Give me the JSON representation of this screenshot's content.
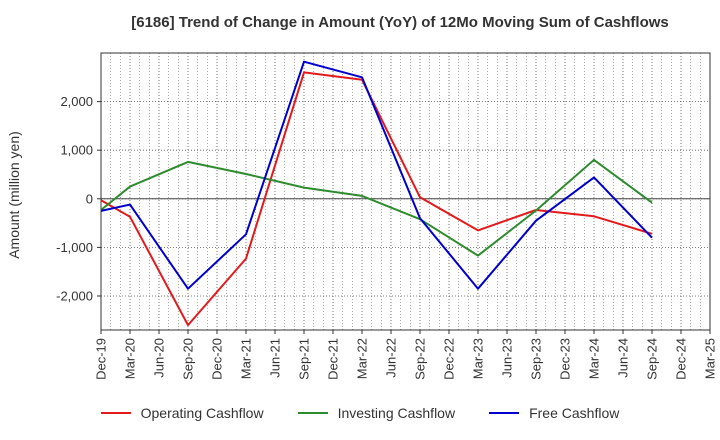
{
  "chart_data": {
    "type": "line",
    "title": "[6186]  Trend of Change in Amount (YoY) of 12Mo Moving Sum of Cashflows",
    "xlabel": "",
    "ylabel": "Amount (million yen)",
    "ylim": [
      -2700,
      3000
    ],
    "yticks": [
      -2000,
      -1000,
      0,
      1000,
      2000
    ],
    "ytick_labels": [
      "-2,000",
      "-1,000",
      "0",
      "1,000",
      "2,000"
    ],
    "categories": [
      "Dec-19",
      "Mar-20",
      "Jun-20",
      "Sep-20",
      "Dec-20",
      "Mar-21",
      "Jun-21",
      "Sep-21",
      "Dec-21",
      "Mar-22",
      "Jun-22",
      "Sep-22",
      "Dec-22",
      "Mar-23",
      "Jun-23",
      "Sep-23",
      "Dec-23",
      "Mar-24",
      "Jun-24",
      "Sep-24",
      "Dec-24",
      "Mar-25"
    ],
    "series": [
      {
        "name": "Operating Cashflow",
        "color": "#e31a1c",
        "points": [
          [
            0,
            -30
          ],
          [
            1,
            -370
          ],
          [
            3,
            -2600
          ],
          [
            5,
            -1230
          ],
          [
            7,
            2600
          ],
          [
            9,
            2450
          ],
          [
            11,
            30
          ],
          [
            13,
            -650
          ],
          [
            15,
            -230
          ],
          [
            17,
            -360
          ],
          [
            19,
            -720
          ]
        ]
      },
      {
        "name": "Investing Cashflow",
        "color": "#2e8b2e",
        "points": [
          [
            0,
            -230
          ],
          [
            1,
            250
          ],
          [
            3,
            760
          ],
          [
            5,
            510
          ],
          [
            7,
            230
          ],
          [
            9,
            60
          ],
          [
            11,
            -420
          ],
          [
            13,
            -1170
          ],
          [
            15,
            -240
          ],
          [
            17,
            800
          ],
          [
            19,
            -80
          ]
        ]
      },
      {
        "name": "Free Cashflow",
        "color": "#0000cc",
        "points": [
          [
            0,
            -250
          ],
          [
            1,
            -120
          ],
          [
            3,
            -1850
          ],
          [
            5,
            -730
          ],
          [
            7,
            2820
          ],
          [
            9,
            2500
          ],
          [
            11,
            -400
          ],
          [
            13,
            -1850
          ],
          [
            15,
            -450
          ],
          [
            17,
            440
          ],
          [
            19,
            -800
          ]
        ]
      }
    ],
    "grid": true,
    "legend_position": "bottom"
  }
}
